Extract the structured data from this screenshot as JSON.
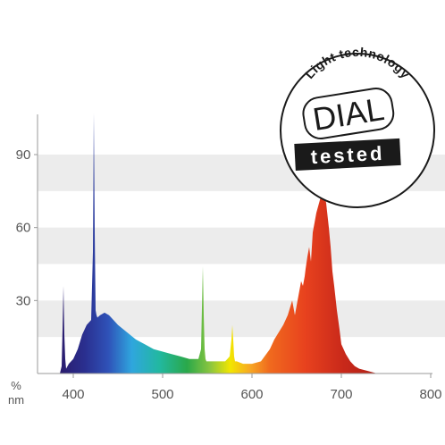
{
  "chart_data": {
    "type": "area",
    "title": "",
    "xlabel": "nm",
    "ylabel": "%",
    "xlim": [
      360,
      800
    ],
    "ylim": [
      0,
      110
    ],
    "x_ticks": [
      "400",
      "500",
      "600",
      "700",
      "800"
    ],
    "y_ticks": [
      "30",
      "60",
      "90"
    ],
    "grid": "alternating horizontal bands",
    "fill": "visible-spectrum gradient",
    "series": [
      {
        "x": [
          360,
          385,
          387,
          388,
          389,
          390,
          391,
          392,
          395,
          400,
          405,
          410,
          415,
          420,
          422,
          423,
          424,
          425,
          426,
          427,
          430,
          435,
          440,
          445,
          450,
          460,
          470,
          480,
          490,
          500,
          510,
          520,
          530,
          540,
          543,
          545,
          546,
          547,
          548,
          549,
          551,
          555,
          560,
          570,
          575,
          577,
          578,
          579,
          580,
          581,
          583,
          590,
          600,
          610,
          620,
          625,
          630,
          635,
          640,
          645,
          648,
          650,
          652,
          655,
          657,
          659,
          660,
          662,
          664,
          666,
          668,
          670,
          672,
          675,
          678,
          680,
          683,
          686,
          688,
          690,
          692,
          695,
          698,
          700,
          705,
          710,
          715,
          720,
          730,
          740,
          750,
          800
        ],
        "y": [
          0,
          0,
          3,
          18,
          36,
          16,
          6,
          2,
          4,
          6,
          10,
          16,
          20,
          22,
          50,
          107,
          58,
          26,
          24,
          23,
          24,
          25,
          24,
          22,
          20,
          17,
          14,
          12,
          10,
          9,
          8,
          7,
          6,
          6,
          10,
          44,
          24,
          10,
          6,
          5,
          5,
          5,
          5,
          5,
          7,
          14,
          20,
          14,
          7,
          5,
          5,
          4,
          4,
          5,
          10,
          14,
          17,
          20,
          24,
          30,
          24,
          28,
          32,
          38,
          36,
          40,
          43,
          48,
          52,
          46,
          58,
          62,
          66,
          70,
          74,
          76,
          70,
          60,
          52,
          42,
          36,
          26,
          18,
          12,
          8,
          5,
          3,
          2,
          1,
          0,
          0,
          0
        ]
      }
    ]
  },
  "seal": {
    "arc_text": "Light technology",
    "big_text": "DIAL",
    "stamp_text": "tested"
  },
  "colors": {
    "band": "#ececec",
    "axis": "#9a9a9a",
    "seal_stroke": "#1a1a1a"
  }
}
